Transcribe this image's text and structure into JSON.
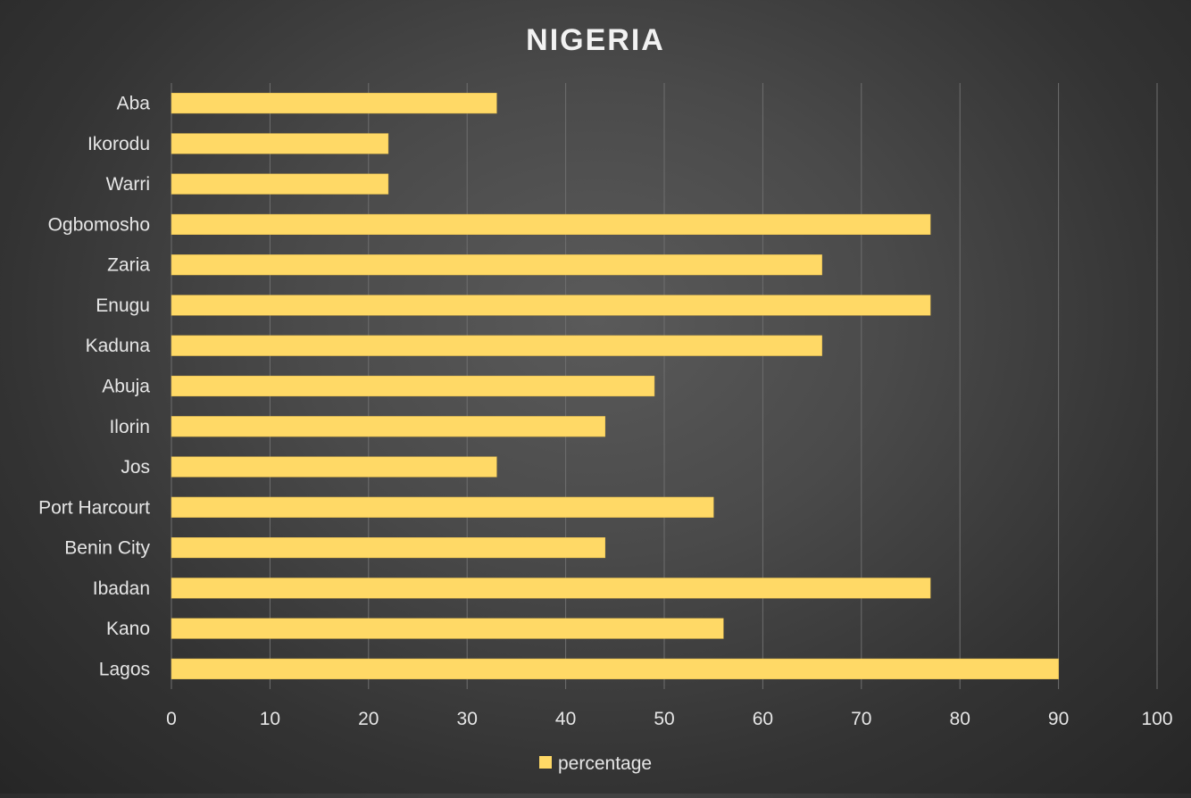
{
  "chart_data": {
    "type": "bar",
    "orientation": "horizontal",
    "title": "NIGERIA",
    "categories": [
      "Lagos",
      "Kano",
      "Ibadan",
      "Benin City",
      "Port Harcourt",
      "Jos",
      "Ilorin",
      "Abuja",
      "Kaduna",
      "Enugu",
      "Zaria",
      "Ogbomosho",
      "Warri",
      "Ikorodu",
      "Aba"
    ],
    "series": [
      {
        "name": "percentage",
        "values": [
          90,
          56,
          77,
          44,
          55,
          33,
          44,
          49,
          66,
          77,
          66,
          77,
          22,
          22,
          33
        ],
        "color": "#ffd966"
      }
    ],
    "xlim": [
      0,
      100
    ],
    "xticks": [
      0,
      10,
      20,
      30,
      40,
      50,
      60,
      70,
      80,
      90,
      100
    ],
    "xlabel": "",
    "ylabel": "",
    "grid": "vertical",
    "legend": "bottom"
  },
  "colors": {
    "text": "#e6e6e6",
    "title": "#f2f2f2",
    "grid": "#6e6e6e",
    "bar_stroke": "#e8c050"
  }
}
